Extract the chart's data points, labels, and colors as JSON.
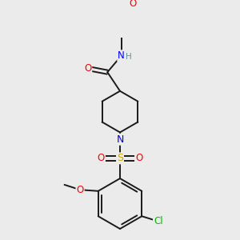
{
  "bg_color": "#ebebeb",
  "bond_color": "#1a1a1a",
  "atom_colors": {
    "O": "#ff0000",
    "N": "#0000ff",
    "S": "#ccaa00",
    "Cl": "#00bb00",
    "H": "#5a9a9a",
    "C": "#1a1a1a"
  }
}
